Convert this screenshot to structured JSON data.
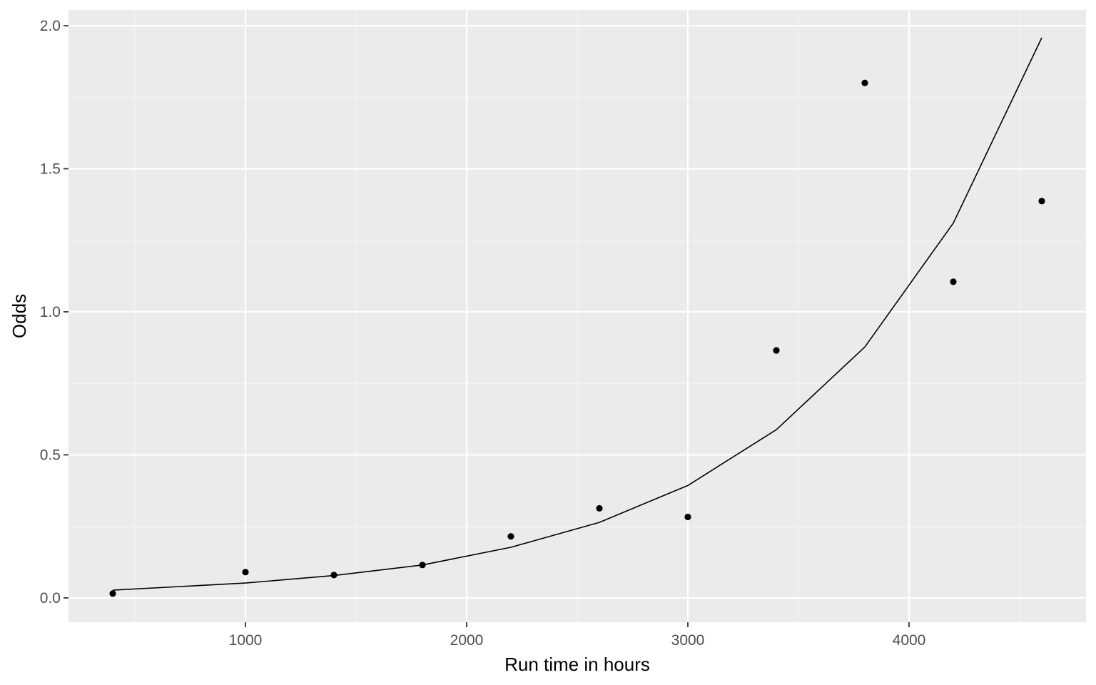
{
  "chart_data": {
    "type": "scatter",
    "title": "",
    "xlabel": "Run time in hours",
    "ylabel": "Odds",
    "xlim": [
      200,
      4800
    ],
    "ylim": [
      -0.085,
      2.055
    ],
    "x_ticks": [
      1000,
      2000,
      3000,
      4000
    ],
    "x_tick_labels": [
      "1000",
      "2000",
      "3000",
      "4000"
    ],
    "x_minor_ticks": [
      500,
      1500,
      2500,
      3500,
      4500
    ],
    "y_ticks": [
      0.0,
      0.5,
      1.0,
      1.5,
      2.0
    ],
    "y_tick_labels": [
      "0.0",
      "0.5",
      "1.0",
      "1.5",
      "2.0"
    ],
    "y_minor_ticks": [
      0.25,
      0.75,
      1.25,
      1.75
    ],
    "grid": true,
    "legend": "none",
    "colors": {
      "panel_background": "#ebebeb",
      "grid_major": "#ffffff",
      "grid_minor": "#f5f5f5",
      "points": "#000000",
      "line": "#000000",
      "tick_label": "#4d4d4d",
      "tick_mark": "#333333"
    },
    "series": [
      {
        "kind": "points",
        "x": [
          400,
          1000,
          1400,
          1800,
          2200,
          2600,
          3000,
          3400,
          3800,
          4200,
          4600
        ],
        "y": [
          0.015,
          0.09,
          0.08,
          0.115,
          0.215,
          0.313,
          0.283,
          0.865,
          1.8,
          1.105,
          1.387
        ]
      },
      {
        "kind": "line",
        "x": [
          400,
          1000,
          1400,
          1800,
          2200,
          2600,
          3000,
          3400,
          3800,
          4200,
          4600
        ],
        "y": [
          0.027,
          0.052,
          0.078,
          0.115,
          0.177,
          0.264,
          0.393,
          0.588,
          0.877,
          1.31,
          1.958
        ]
      }
    ]
  }
}
